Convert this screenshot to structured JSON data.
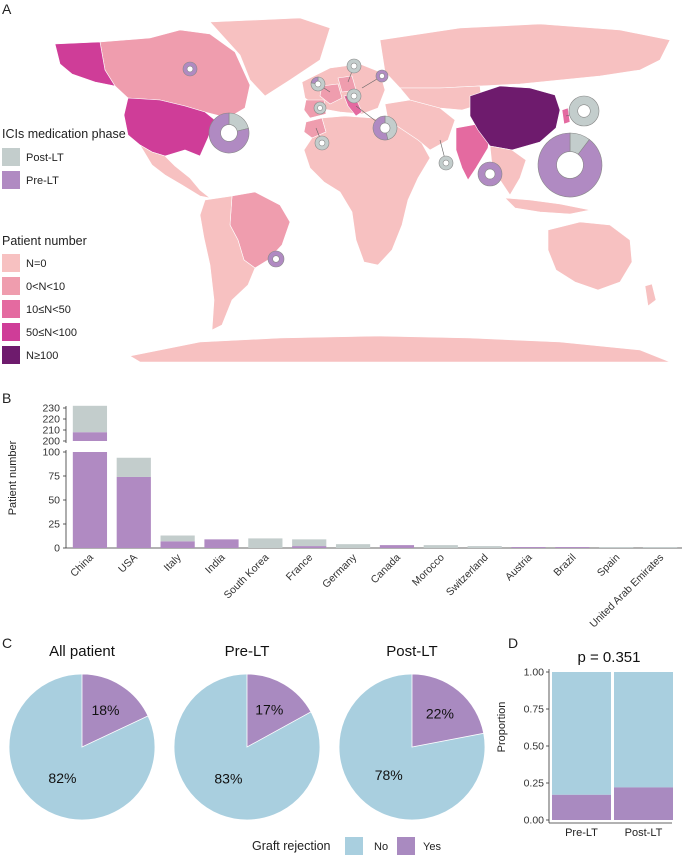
{
  "colors": {
    "n0": "#f7c1c1",
    "n1": "#ef9dae",
    "n2": "#e46aa0",
    "n3": "#cf3d98",
    "n4": "#6e1b6d",
    "post_lt": "#c3cdcc",
    "pre_lt": "#b08ac2",
    "rejection_no": "#a9cfdf",
    "rejection_yes": "#a98ac0"
  },
  "panel_labels": {
    "a": "A",
    "b": "B",
    "c": "C",
    "d": "D"
  },
  "map": {
    "phase_legend_title": "ICIs medication phase",
    "phase_legend": [
      {
        "label": "Post-LT",
        "color": "#c3cdcc"
      },
      {
        "label": "Pre-LT",
        "color": "#b08ac2"
      }
    ],
    "patient_legend_title": "Patient number",
    "patient_legend": [
      {
        "label": "N=0",
        "color": "#f7c1c1"
      },
      {
        "label": "0<N<10",
        "color": "#ef9dae"
      },
      {
        "label": "10≤N<50",
        "color": "#e46aa0"
      },
      {
        "label": "50≤N<100",
        "color": "#cf3d98"
      },
      {
        "label": "N≥100",
        "color": "#6e1b6d"
      }
    ]
  },
  "chart_data": [
    {
      "type": "bar",
      "panel": "B",
      "ylabel": "Patient number",
      "categories": [
        "China",
        "USA",
        "Italy",
        "India",
        "South Korea",
        "France",
        "Germany",
        "Canada",
        "Morocco",
        "Switzerland",
        "Austria",
        "Brazil",
        "Spain",
        "United Arab Emirates"
      ],
      "series": [
        {
          "name": "Pre-LT",
          "color": "#b08ac2",
          "values": [
            208,
            74,
            7,
            9,
            0,
            2,
            0,
            3,
            0,
            0,
            1,
            1,
            0,
            0
          ]
        },
        {
          "name": "Post-LT",
          "color": "#c3cdcc",
          "values": [
            24,
            20,
            6,
            0,
            10,
            7,
            4,
            0,
            3,
            2,
            0,
            0,
            1,
            1
          ]
        }
      ],
      "yaxis_lower": {
        "range": [
          0,
          100
        ],
        "ticks": [
          "0",
          "25",
          "50",
          "75",
          "100"
        ]
      },
      "yaxis_upper": {
        "range": [
          200,
          230
        ],
        "ticks": [
          "200",
          "210",
          "220",
          "230"
        ]
      }
    },
    {
      "type": "pie",
      "panel": "C",
      "legend_title": "Graft rejection",
      "legend": [
        {
          "label": "No",
          "color": "#a9cfdf"
        },
        {
          "label": "Yes",
          "color": "#a98ac0"
        }
      ],
      "pies": [
        {
          "title": "All patient",
          "yes": 18,
          "no": 82,
          "yes_label": "18%",
          "no_label": "82%"
        },
        {
          "title": "Pre-LT",
          "yes": 17,
          "no": 83,
          "yes_label": "17%",
          "no_label": "83%"
        },
        {
          "title": "Post-LT",
          "yes": 22,
          "no": 78,
          "yes_label": "22%",
          "no_label": "78%"
        }
      ]
    },
    {
      "type": "bar",
      "panel": "D",
      "title": "p = 0.351",
      "ylabel": "Proportion",
      "categories": [
        "Pre-LT",
        "Post-LT"
      ],
      "series": [
        {
          "name": "Yes",
          "color": "#a98ac0",
          "values": [
            0.17,
            0.22
          ]
        },
        {
          "name": "No",
          "color": "#a9cfdf",
          "values": [
            0.83,
            0.78
          ]
        }
      ],
      "ylim": [
        0,
        1
      ],
      "ticks": [
        "0.00",
        "0.25",
        "0.50",
        "0.75",
        "1.00"
      ]
    }
  ]
}
